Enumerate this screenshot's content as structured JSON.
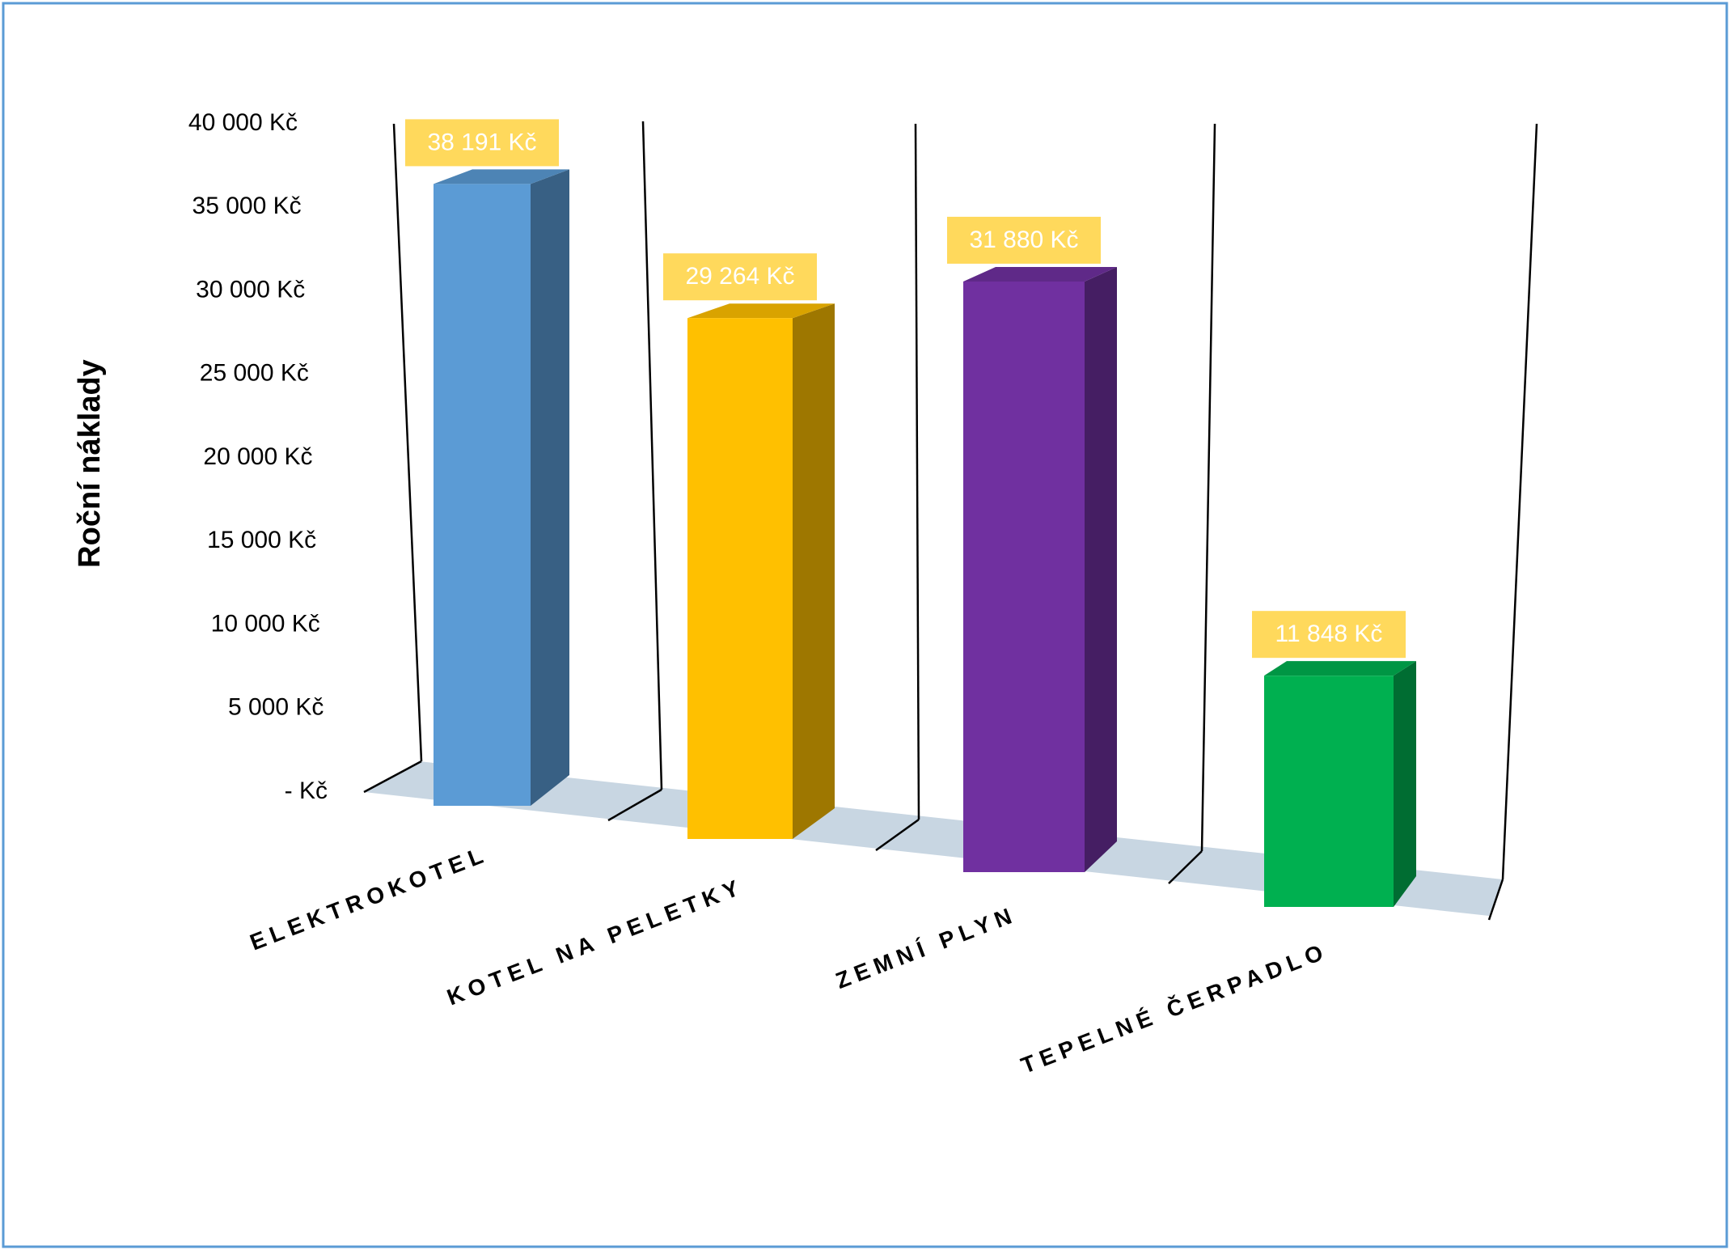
{
  "chart_data": {
    "type": "bar3d",
    "y_axis_label": "Roční náklady",
    "categories": [
      "ELEKTROKOTEL",
      "KOTEL NA PELETKY",
      "ZEMNÍ PLYN",
      "TEPELNÉ ČERPADLO"
    ],
    "values": [
      38191,
      29264,
      31880,
      11848
    ],
    "value_labels": [
      "38 191 Kč",
      "29 264 Kč",
      "31 880 Kč",
      "11 848 Kč"
    ],
    "colors": [
      "#5b9bd5",
      "#ffc000",
      "#7030a0",
      "#00b050"
    ],
    "ylim": [
      0,
      40000
    ],
    "yticks": [
      {
        "value": 0,
        "label": "-   Kč"
      },
      {
        "value": 5000,
        "label": "5 000 Kč"
      },
      {
        "value": 10000,
        "label": "10 000 Kč"
      },
      {
        "value": 15000,
        "label": "15 000 Kč"
      },
      {
        "value": 20000,
        "label": "20 000 Kč"
      },
      {
        "value": 25000,
        "label": "25 000 Kč"
      },
      {
        "value": 30000,
        "label": "30 000 Kč"
      },
      {
        "value": 35000,
        "label": "35 000 Kč"
      },
      {
        "value": 40000,
        "label": "40 000 Kč"
      }
    ],
    "grid": false
  }
}
